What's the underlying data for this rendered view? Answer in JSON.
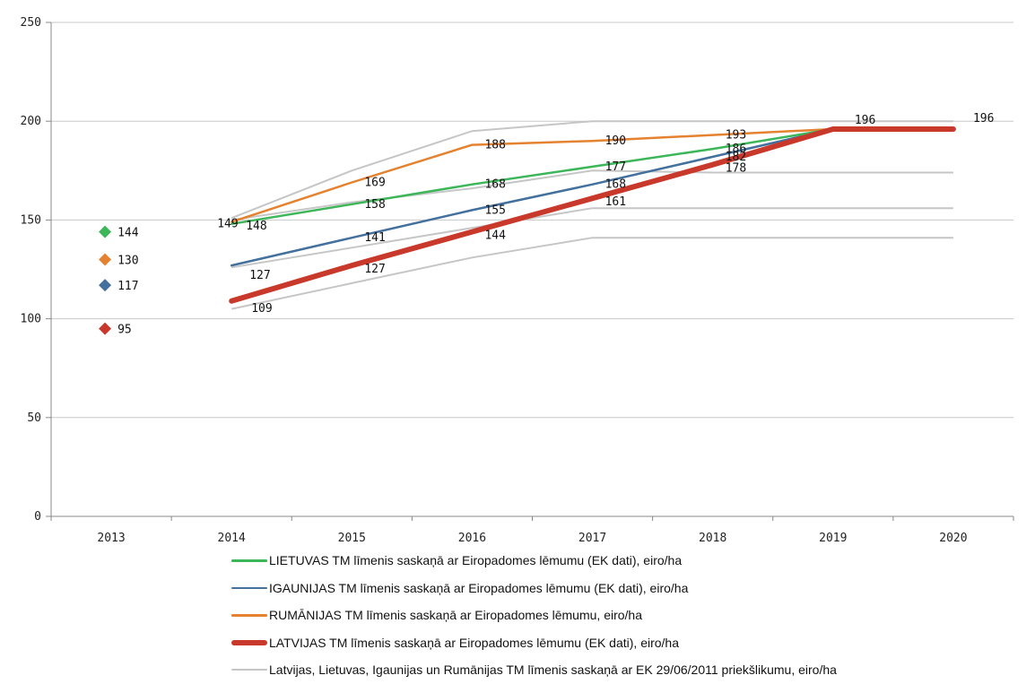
{
  "chart_data": {
    "type": "line",
    "title": "",
    "xlabel": "",
    "ylabel": "",
    "categories": [
      "2013",
      "2014",
      "2015",
      "2016",
      "2017",
      "2018",
      "2019",
      "2020"
    ],
    "ylim": [
      0,
      250
    ],
    "yticks": [
      0,
      50,
      100,
      150,
      200,
      250
    ],
    "grid": true,
    "legend_position": "bottom",
    "markers_2013": [
      {
        "series": "lt",
        "value": 144,
        "label": "144"
      },
      {
        "series": "ro",
        "value": 130,
        "label": "130"
      },
      {
        "series": "ee",
        "value": 117,
        "label": "117"
      },
      {
        "series": "lv",
        "value": 95,
        "label": "95"
      }
    ],
    "series": [
      {
        "id": "lt",
        "name": "LIETUVAS TM līmenis saskaņā ar Eiropadomes lēmumu (EK dati), eiro/ha",
        "color": "#3db65a",
        "width": 2.5,
        "values": [
          null,
          148,
          158,
          168,
          177,
          186,
          196,
          196
        ],
        "labels": [
          null,
          "148",
          "158",
          "168",
          "177",
          "186",
          null,
          null
        ]
      },
      {
        "id": "ee",
        "name": "IGAUNIJAS TM līmenis saskaņā ar Eiropadomes lēmumu (EK dati), eiro/ha",
        "color": "#44709e",
        "width": 2.5,
        "values": [
          null,
          127,
          141,
          155,
          168,
          182,
          196,
          196
        ],
        "labels": [
          null,
          "127",
          "141",
          "155",
          "168",
          "182",
          null,
          null
        ]
      },
      {
        "id": "ro",
        "name": "RUMĀNIJAS TM līmenis saskaņā ar Eiropadomes lēmumu, eiro/ha",
        "color": "#e4822f",
        "width": 2.5,
        "values": [
          null,
          149,
          169,
          188,
          190,
          193,
          196,
          196
        ],
        "labels": [
          null,
          "149",
          "169",
          "188",
          "190",
          "193",
          null,
          null
        ]
      },
      {
        "id": "lv",
        "name": "LATVIJAS TM līmenis saskaņā ar Eiropadomes lēmumu (EK dati), eiro/ha",
        "color": "#c9392b",
        "width": 6,
        "values": [
          null,
          109,
          127,
          144,
          161,
          178,
          196,
          196
        ],
        "labels": [
          null,
          "109",
          "127",
          "144",
          "161",
          "178",
          "196",
          "196"
        ]
      },
      {
        "id": "prop",
        "name": "Latvijas, Lietuvas, Igaunijas un Rumānijas TM līmenis saskaņā ar EK 29/06/2011 priekšlikumu, eiro/ha",
        "color": "#c6c6c6",
        "width": 2,
        "lines": [
          [
            null,
            151,
            175,
            195,
            200,
            200,
            200,
            200
          ],
          [
            null,
            150,
            159,
            166,
            175,
            174,
            174,
            174
          ],
          [
            null,
            126,
            136,
            146,
            156,
            156,
            156,
            156
          ],
          [
            null,
            105,
            118,
            131,
            141,
            141,
            141,
            141
          ]
        ]
      }
    ]
  }
}
